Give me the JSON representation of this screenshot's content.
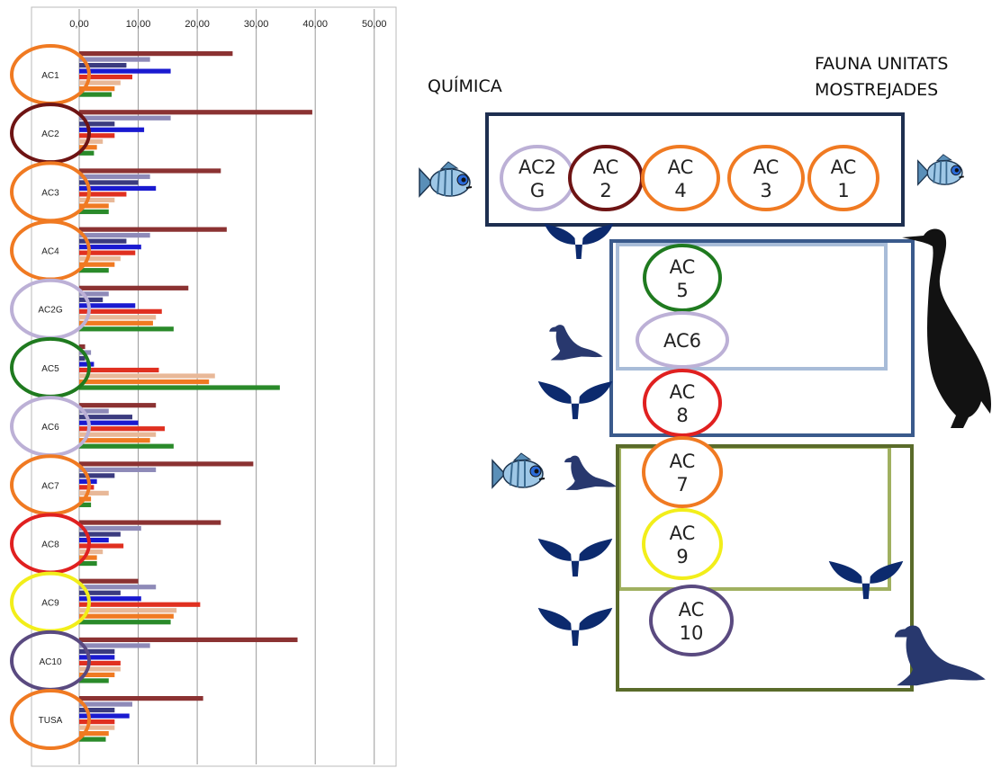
{
  "chart_data": {
    "type": "bar",
    "categories": [
      "AC1",
      "AC2",
      "AC3",
      "AC4",
      "AC2G",
      "AC5",
      "AC6",
      "AC7",
      "AC8",
      "AC9",
      "AC10",
      "TUSA"
    ],
    "category_colors": [
      "#f07a22",
      "#6e1414",
      "#f07a22",
      "#f07a22",
      "#bcb0d6",
      "#1f7a1f",
      "#bcb0d6",
      "#f07a22",
      "#e02020",
      "#f2ee1a",
      "#5a4a80",
      "#f07a22"
    ],
    "series": [
      {
        "color": "#8b3232",
        "values": [
          26,
          39.5,
          24,
          25,
          18.5,
          1,
          13,
          29.5,
          24,
          10,
          37,
          21
        ]
      },
      {
        "color": "#8e8ab8",
        "values": [
          12,
          15.5,
          12,
          12,
          5,
          2,
          5,
          13,
          10.5,
          13,
          12,
          9
        ]
      },
      {
        "color": "#3b3b7f",
        "values": [
          8,
          6,
          10,
          8,
          4,
          1,
          9,
          6,
          7,
          7,
          6,
          6
        ]
      },
      {
        "color": "#1a1ad0",
        "values": [
          15.5,
          11,
          13,
          10.5,
          9.5,
          2.5,
          10,
          3,
          5,
          10.5,
          6,
          8.5
        ]
      },
      {
        "color": "#e03020",
        "values": [
          9,
          6,
          8,
          9.5,
          14,
          13.5,
          14.5,
          2.5,
          7.5,
          20.5,
          7,
          6
        ]
      },
      {
        "color": "#e8b898",
        "values": [
          7,
          4,
          6,
          7,
          13,
          23,
          13,
          5,
          4,
          16.5,
          7,
          6
        ]
      },
      {
        "color": "#f07a22",
        "values": [
          6,
          3,
          5,
          6,
          12.5,
          22,
          12,
          2,
          3,
          16,
          6,
          5
        ]
      },
      {
        "color": "#2a8a2a",
        "values": [
          5.5,
          2.5,
          5,
          5,
          16,
          34,
          16,
          2,
          3,
          15.5,
          5,
          4.5
        ]
      }
    ],
    "xlim": [
      0,
      53.7
    ],
    "xticks": [
      {
        "value": 0,
        "label": "0,00"
      },
      {
        "value": 10,
        "label": "10,00"
      },
      {
        "value": 20,
        "label": "20,00"
      },
      {
        "value": 30,
        "label": "30,00"
      },
      {
        "value": 40,
        "label": "40,00"
      },
      {
        "value": 50,
        "label": "50,00"
      }
    ],
    "grid": true
  },
  "diagram": {
    "left_label": "QUÍMICA",
    "right_label": [
      "FAUNA UNITATS",
      "MOSTREJADES"
    ],
    "nodes": [
      {
        "lines": [
          "AC2",
          "G"
        ],
        "color": "#bcb0d6"
      },
      {
        "lines": [
          "AC",
          "2"
        ],
        "color": "#6e1414"
      },
      {
        "lines": [
          "AC",
          "4"
        ],
        "color": "#f07a22"
      },
      {
        "lines": [
          "AC",
          "3"
        ],
        "color": "#f07a22"
      },
      {
        "lines": [
          "AC",
          "1"
        ],
        "color": "#f07a22"
      },
      {
        "lines": [
          "AC",
          "5"
        ],
        "color": "#1f7a1f"
      },
      {
        "lines": [
          "AC6"
        ],
        "color": "#bcb0d6"
      },
      {
        "lines": [
          "AC",
          "8"
        ],
        "color": "#e02020"
      },
      {
        "lines": [
          "AC",
          "7"
        ],
        "color": "#f07a22"
      },
      {
        "lines": [
          "AC",
          "9"
        ],
        "color": "#f2ee1a"
      },
      {
        "lines": [
          "AC",
          "10"
        ],
        "color": "#5a4a80"
      }
    ]
  }
}
